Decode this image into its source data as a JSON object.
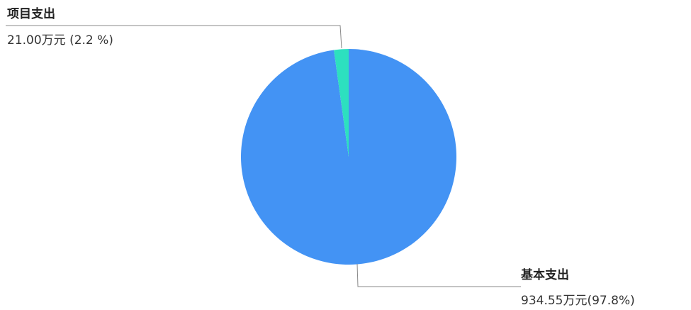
{
  "chart_data": {
    "type": "pie",
    "title": "",
    "unit": "万元",
    "start_angle_deg": -90,
    "direction": "clockwise",
    "slices": [
      {
        "name": "基本支出",
        "value": 934.55,
        "percent": 97.8,
        "value_label": "934.55万元(97.8%)",
        "color": "#4393f4"
      },
      {
        "name": "项目支出",
        "value": 21.0,
        "percent": 2.2,
        "value_label": "21.00万元 (2.2 %)",
        "color": "#2de0bf"
      }
    ],
    "leader_line_color": "#888888"
  }
}
